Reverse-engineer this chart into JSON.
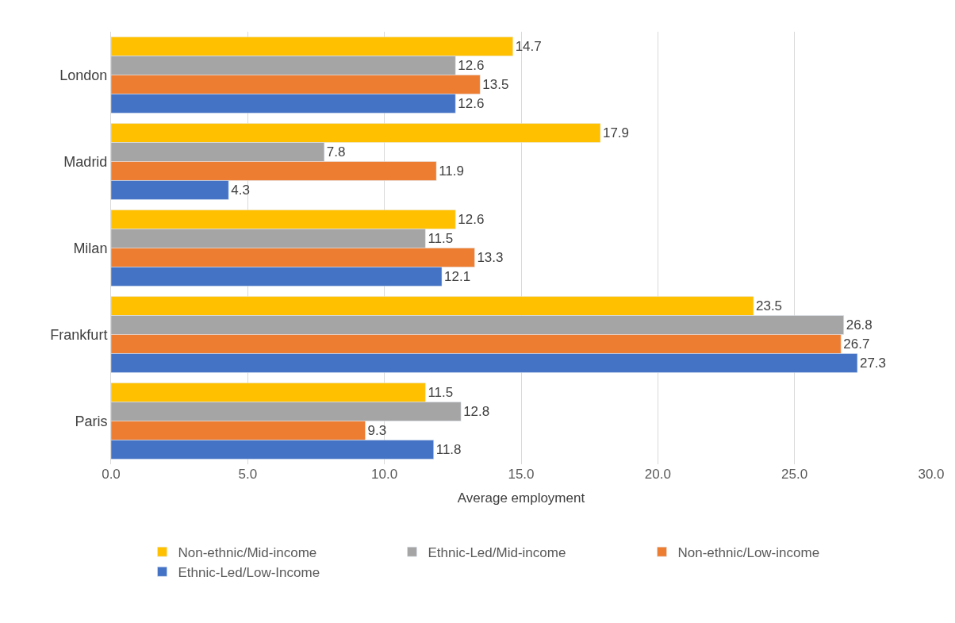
{
  "chart_data": {
    "type": "bar",
    "orientation": "horizontal",
    "xlabel": "Average employment",
    "categories": [
      "London",
      "Madrid",
      "Milan",
      "Frankfurt",
      "Paris"
    ],
    "series": [
      {
        "name": "Non-ethnic/Mid-income",
        "color": "#ffc000",
        "values": [
          14.7,
          17.9,
          12.6,
          23.5,
          11.5
        ]
      },
      {
        "name": "Ethnic-Led/Mid-income",
        "color": "#a5a5a5",
        "values": [
          12.6,
          7.8,
          11.5,
          26.8,
          12.8
        ]
      },
      {
        "name": "Non-ethnic/Low-income",
        "color": "#ed7d31",
        "values": [
          13.5,
          11.9,
          13.3,
          26.7,
          9.3
        ]
      },
      {
        "name": "Ethnic-Led/Low-Income",
        "color": "#4472c4",
        "values": [
          12.6,
          4.3,
          12.1,
          27.3,
          11.8
        ]
      }
    ],
    "xlim": [
      0,
      30
    ],
    "xticks": [
      {
        "value": 0,
        "label": "0.0"
      },
      {
        "value": 5,
        "label": "5.0"
      },
      {
        "value": 10,
        "label": "10.0"
      },
      {
        "value": 15,
        "label": "15.0"
      },
      {
        "value": 20,
        "label": "20.0"
      },
      {
        "value": 25,
        "label": "25.0"
      },
      {
        "value": 30,
        "label": "30.0"
      }
    ],
    "grid": "x",
    "legend": "bottom",
    "data_labels": true
  }
}
